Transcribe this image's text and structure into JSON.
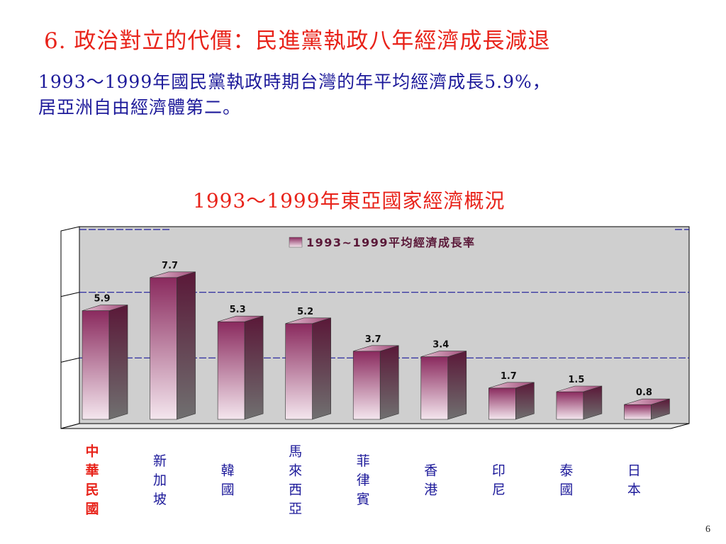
{
  "slide": {
    "title": "6. 政治對立的代價：民進黨執政八年經濟成長減退",
    "subtitle_line1": "1993～1999年國民黨執政時期台灣的年平均經濟成長5.9%，",
    "subtitle_line2": "居亞洲自由經濟體第二。",
    "page_number": "6"
  },
  "chart_data": {
    "type": "bar",
    "title": "1993～1999年東亞國家經濟概況",
    "categories": [
      "中華民國",
      "新加坡",
      "韓國",
      "馬來西亞",
      "菲律賓",
      "香港",
      "印尼",
      "泰國",
      "日本"
    ],
    "series": [
      {
        "name": "1993~1999平均經濟成長率",
        "values": [
          5.9,
          7.7,
          5.3,
          5.2,
          3.7,
          3.4,
          1.7,
          1.5,
          0.8
        ]
      }
    ],
    "value_labels": [
      "5.9",
      "7.7",
      "5.3",
      "5.2",
      "3.7",
      "3.4",
      "1.7",
      "1.5",
      "0.8"
    ],
    "highlighted_category": "中華民國",
    "ylim": [
      0,
      10
    ],
    "grid": true,
    "legend_position": "top-center",
    "style": "3d-bar",
    "colors": {
      "bar_top": "#8a2a5e",
      "bar_bottom": "#f4e6ee",
      "bar_side_top": "#5a1838",
      "bar_side_bottom": "#707070",
      "highlight_label": "#e8231a",
      "normal_label": "#1d1a9a",
      "plot_background": "#cfcfcf"
    }
  }
}
